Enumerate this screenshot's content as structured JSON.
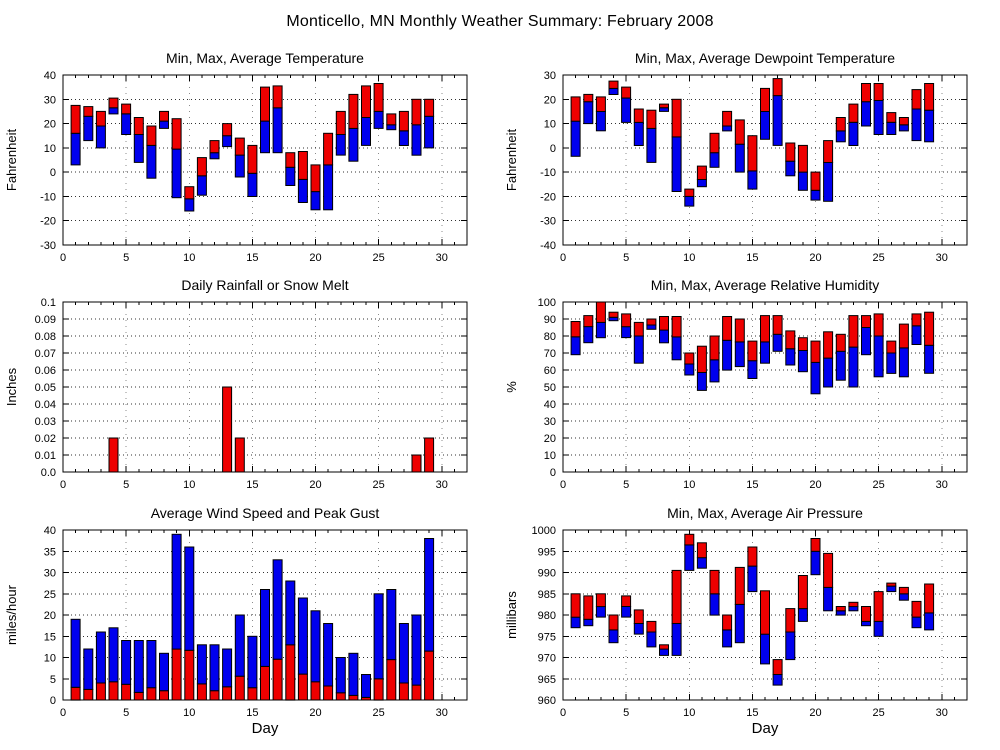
{
  "page_title": "Monticello, MN Monthly Weather Summary: February 2008",
  "colors": {
    "red": "#ee0000",
    "blue": "#0000ee",
    "axis": "#000000",
    "background": "#ffffff"
  },
  "chart_days": [
    1,
    2,
    3,
    4,
    5,
    6,
    7,
    8,
    9,
    10,
    11,
    12,
    13,
    14,
    15,
    16,
    17,
    18,
    19,
    20,
    21,
    22,
    23,
    24,
    25,
    26,
    27,
    28,
    29
  ],
  "chart_data": [
    {
      "type": "bar",
      "subtype": "min-avg-max",
      "title": "Min, Max, Average Temperature",
      "ylabel": "Fahrenheit",
      "xlabel": "",
      "ylim": [
        -30,
        40
      ],
      "yticks": [
        -30,
        -20,
        -10,
        0,
        10,
        20,
        30,
        40
      ],
      "xlim": [
        0,
        32
      ],
      "xticks": [
        0,
        5,
        10,
        15,
        20,
        25,
        30
      ],
      "grid": true,
      "min": [
        3,
        13,
        10,
        24,
        15.5,
        4,
        -2.5,
        18,
        -10.5,
        -16,
        -9.5,
        5.5,
        10.5,
        -2,
        -10,
        8,
        8,
        -5.5,
        -12.5,
        -15.5,
        -15.5,
        7,
        4.5,
        11,
        18,
        17.5,
        11,
        7,
        10
      ],
      "avg": [
        16,
        23,
        19,
        26.5,
        24,
        15.5,
        11,
        21,
        9.5,
        -11,
        -1.5,
        8,
        15,
        7,
        -0.5,
        21,
        26.5,
        2,
        -3,
        -8,
        3,
        15.5,
        18,
        22.5,
        25,
        19.5,
        17,
        19.5,
        23
      ],
      "max": [
        27.5,
        27,
        25,
        30.5,
        28,
        22.5,
        19,
        25,
        22,
        -6,
        6,
        13,
        20,
        14,
        11,
        35,
        35.5,
        8,
        8.5,
        3,
        16,
        25,
        32,
        35.5,
        36.5,
        24,
        25,
        30,
        30
      ]
    },
    {
      "type": "bar",
      "subtype": "min-avg-max",
      "title": "Min, Max, Average Dewpoint Temperature",
      "ylabel": "Fahrenheit",
      "xlabel": "",
      "ylim": [
        -40,
        30
      ],
      "yticks": [
        -40,
        -30,
        -20,
        -10,
        0,
        10,
        20,
        30
      ],
      "xlim": [
        0,
        32
      ],
      "xticks": [
        0,
        5,
        10,
        15,
        20,
        25,
        30
      ],
      "grid": true,
      "min": [
        -3.5,
        10,
        7,
        22,
        10.5,
        1,
        -6,
        15,
        -18,
        -24,
        -16,
        -8,
        7,
        -10,
        -17,
        3.5,
        1,
        -11.5,
        -17.5,
        -21.5,
        -22,
        2.5,
        1,
        9,
        5.5,
        5.5,
        7,
        3,
        2.5
      ],
      "avg": [
        11,
        19,
        15,
        24.5,
        20.5,
        10.5,
        8,
        16.5,
        4.5,
        -20,
        -13,
        -2,
        9,
        1.5,
        -9.5,
        15,
        21.5,
        -5.5,
        -10,
        -17.5,
        -6,
        7,
        10.5,
        19,
        19.5,
        10.5,
        9.5,
        16,
        15.5
      ],
      "max": [
        21,
        22,
        21,
        27.5,
        25,
        16,
        15.5,
        18,
        20,
        -17,
        -7.5,
        6,
        15,
        11.5,
        5,
        24.5,
        28.5,
        2,
        1,
        -10,
        3,
        12.5,
        18,
        26.5,
        26.5,
        14.5,
        12.5,
        24,
        26.5
      ]
    },
    {
      "type": "bar",
      "subtype": "single",
      "title": "Daily Rainfall or Snow Melt",
      "ylabel": "Inches",
      "xlabel": "",
      "ylim": [
        0,
        0.1
      ],
      "yticks": [
        0,
        0.01,
        0.02,
        0.03,
        0.04,
        0.05,
        0.06,
        0.07,
        0.08,
        0.09,
        0.1
      ],
      "ytick_labels": [
        "0.0",
        "0.01",
        "0.02",
        "0.03",
        "0.04",
        "0.05",
        "0.06",
        "0.07",
        "0.08",
        "0.09",
        "0.1"
      ],
      "xlim": [
        0,
        32
      ],
      "xticks": [
        0,
        5,
        10,
        15,
        20,
        25,
        30
      ],
      "grid": true,
      "values": [
        0,
        0,
        0,
        0.02,
        0,
        0,
        0,
        0,
        0,
        0,
        0,
        0,
        0.05,
        0.02,
        0,
        0,
        0,
        0,
        0,
        0,
        0,
        0,
        0,
        0,
        0,
        0,
        0,
        0.01,
        0.02
      ]
    },
    {
      "type": "bar",
      "subtype": "min-avg-max",
      "title": "Min, Max, Average Relative Humidity",
      "ylabel": "%",
      "xlabel": "",
      "ylim": [
        0,
        100
      ],
      "yticks": [
        0,
        10,
        20,
        30,
        40,
        50,
        60,
        70,
        80,
        90,
        100
      ],
      "xlim": [
        0,
        32
      ],
      "xticks": [
        0,
        5,
        10,
        15,
        20,
        25,
        30
      ],
      "grid": true,
      "min": [
        69,
        76,
        79,
        89,
        79,
        64,
        84,
        76,
        66,
        57,
        48,
        53,
        60,
        62,
        55,
        64,
        71,
        63,
        59,
        46,
        50,
        54,
        50,
        69,
        56,
        58,
        56,
        75,
        58
      ],
      "avg": [
        79.5,
        85.5,
        88,
        91,
        85.5,
        80,
        86.5,
        83.5,
        79.5,
        63.5,
        58.5,
        66,
        77.5,
        76.5,
        65.5,
        76.5,
        81,
        72.5,
        71.5,
        64.5,
        67,
        71,
        73.5,
        85,
        80,
        70,
        73,
        86,
        74.5
      ],
      "max": [
        88.5,
        92,
        100,
        94,
        93,
        88,
        90,
        91.5,
        91.5,
        70,
        74,
        80,
        91.5,
        90,
        77,
        92,
        92,
        83,
        79,
        77,
        82.5,
        81,
        92,
        92,
        93,
        77,
        87,
        93,
        94
      ]
    },
    {
      "type": "bar",
      "subtype": "avg-peak",
      "title": "Average Wind Speed and Peak Gust",
      "ylabel": "miles/hour",
      "xlabel": "Day",
      "ylim": [
        0,
        40
      ],
      "yticks": [
        0,
        5,
        10,
        15,
        20,
        25,
        30,
        35,
        40
      ],
      "xlim": [
        0,
        32
      ],
      "xticks": [
        0,
        5,
        10,
        15,
        20,
        25,
        30
      ],
      "grid": true,
      "avg": [
        3,
        2.5,
        4,
        4.3,
        3.7,
        1.8,
        2.9,
        2.2,
        12,
        11.7,
        3.8,
        2.2,
        3.1,
        5.6,
        2.9,
        7.9,
        9.6,
        13,
        6.1,
        4.3,
        3.3,
        1.7,
        1.1,
        0.6,
        5,
        9.5,
        4,
        3.5,
        11.5
      ],
      "peak": [
        19,
        12,
        16,
        17,
        14,
        14,
        14,
        11,
        39,
        36,
        13,
        13,
        12,
        20,
        15,
        26,
        33,
        28,
        24,
        21,
        18,
        10,
        11,
        6,
        25,
        26,
        18,
        20,
        38
      ]
    },
    {
      "type": "bar",
      "subtype": "min-avg-max",
      "title": "Min, Max, Average Air Pressure",
      "ylabel": "millibars",
      "xlabel": "Day",
      "ylim": [
        960,
        1000
      ],
      "yticks": [
        960,
        965,
        970,
        975,
        980,
        985,
        990,
        995,
        1000
      ],
      "xlim": [
        0,
        32
      ],
      "xticks": [
        0,
        5,
        10,
        15,
        20,
        25,
        30
      ],
      "grid": true,
      "min": [
        977,
        977.5,
        979.5,
        973.5,
        979.5,
        975.5,
        972.5,
        970.5,
        970.5,
        990.5,
        991,
        980,
        972.5,
        973.5,
        985.5,
        968.5,
        963.5,
        969.5,
        978.5,
        989.5,
        981,
        980,
        981,
        977.5,
        975,
        985.5,
        983.5,
        977,
        976.5
      ],
      "avg": [
        979.5,
        979,
        982,
        976.5,
        982,
        978,
        976,
        972,
        978,
        996.5,
        993.5,
        985,
        976.5,
        982.5,
        991.5,
        975.5,
        966,
        976,
        981.5,
        995,
        986.5,
        981,
        982,
        978.5,
        978.5,
        986.8,
        985,
        979.5,
        980.5
      ],
      "max": [
        985,
        984.5,
        985,
        980,
        984.5,
        981.2,
        978.5,
        973,
        990.5,
        999,
        997,
        990.5,
        980,
        991.2,
        996,
        985.7,
        969.5,
        981.5,
        989.3,
        998,
        994.5,
        982,
        983,
        982,
        985.5,
        987.5,
        986.5,
        983.2,
        987.3
      ]
    }
  ]
}
